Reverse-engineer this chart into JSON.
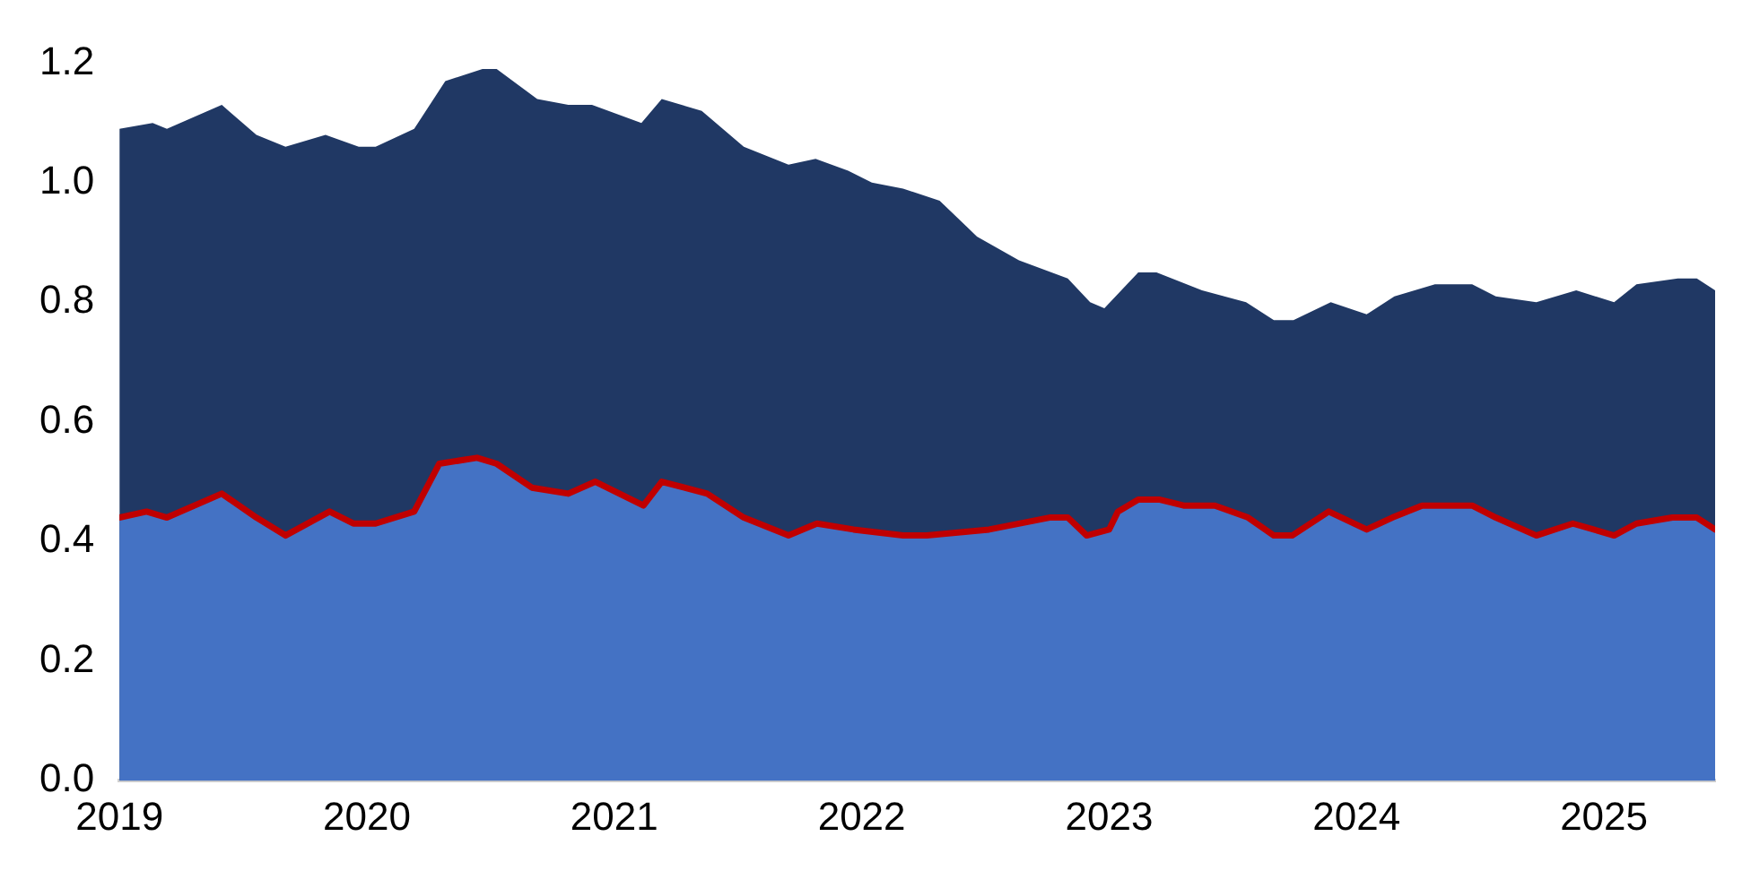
{
  "chart_data": {
    "type": "area",
    "xlim": [
      "2019-01-01",
      "2025-06-14"
    ],
    "xticks": [
      {
        "value": "2019",
        "label": "2019"
      },
      {
        "value": "2020",
        "label": "2020"
      },
      {
        "value": "2021",
        "label": "2021"
      },
      {
        "value": "2022",
        "label": "2022"
      },
      {
        "value": "2023",
        "label": "2023"
      },
      {
        "value": "2024",
        "label": "2024"
      },
      {
        "value": "2025",
        "label": "2025"
      }
    ],
    "ylim": [
      0,
      1.2
    ],
    "yticks": [
      {
        "value": 0,
        "label": "0.0"
      },
      {
        "value": 0.2,
        "label": "0.2"
      },
      {
        "value": 0.4,
        "label": "0.4"
      },
      {
        "value": 0.6,
        "label": "0.6"
      },
      {
        "value": 0.8,
        "label": "0.8"
      },
      {
        "value": 1,
        "label": "1.0"
      },
      {
        "value": 1.2,
        "label": "1.2"
      }
    ],
    "grid": false,
    "legend": false,
    "marker": "none",
    "series": [
      {
        "type": "area",
        "color": "#203864",
        "x": [
          "2019-01-01",
          "2019-02-19",
          "2019-03-12",
          "2019-06-01",
          "2019-07-22",
          "2019-09-03",
          "2019-11-01",
          "2019-12-20",
          "2020-01-14",
          "2020-03-11",
          "2020-04-26",
          "2020-06-20",
          "2020-07-11",
          "2020-09-09",
          "2020-10-25",
          "2020-11-29",
          "2021-02-10",
          "2021-03-12",
          "2021-05-10",
          "2021-07-11",
          "2021-09-15",
          "2021-10-25",
          "2021-12-12",
          "2022-01-16",
          "2022-03-03",
          "2022-04-26",
          "2022-06-20",
          "2022-08-21",
          "2022-11-01",
          "2022-12-04",
          "2022-12-25",
          "2023-02-13",
          "2023-03-12",
          "2023-05-18",
          "2023-07-22",
          "2023-09-01",
          "2023-09-30",
          "2023-11-24",
          "2024-01-16",
          "2024-02-26",
          "2024-04-26",
          "2024-06-20",
          "2024-07-25",
          "2024-09-23",
          "2024-11-21",
          "2025-01-16",
          "2025-02-18",
          "2025-04-20",
          "2025-05-18",
          "2025-06-14"
        ],
        "values": [
          1.09,
          1.1,
          1.09,
          1.13,
          1.08,
          1.06,
          1.08,
          1.06,
          1.06,
          1.09,
          1.17,
          1.19,
          1.19,
          1.14,
          1.13,
          1.13,
          1.1,
          1.14,
          1.12,
          1.06,
          1.03,
          1.04,
          1.02,
          1.0,
          0.99,
          0.97,
          0.91,
          0.87,
          0.84,
          0.8,
          0.79,
          0.85,
          0.85,
          0.82,
          0.8,
          0.77,
          0.77,
          0.8,
          0.78,
          0.81,
          0.83,
          0.83,
          0.81,
          0.8,
          0.82,
          0.8,
          0.83,
          0.84,
          0.84,
          0.82
        ]
      },
      {
        "type": "area",
        "color": "#4472c4",
        "x": [
          "2019-01-01",
          "2019-02-10",
          "2019-03-12",
          "2019-06-01",
          "2019-07-22",
          "2019-09-03",
          "2019-11-07",
          "2019-12-12",
          "2020-01-14",
          "2020-03-11",
          "2020-04-17",
          "2020-06-12",
          "2020-07-11",
          "2020-09-01",
          "2020-10-25",
          "2020-12-04",
          "2021-02-13",
          "2021-03-12",
          "2021-05-18",
          "2021-07-11",
          "2021-09-15",
          "2021-10-27",
          "2021-12-20",
          "2022-03-03",
          "2022-04-07",
          "2022-07-08",
          "2022-10-05",
          "2022-11-01",
          "2022-11-29",
          "2023-01-01",
          "2023-01-14",
          "2023-02-13",
          "2023-03-17",
          "2023-04-21",
          "2023-06-06",
          "2023-07-25",
          "2023-09-01",
          "2023-09-28",
          "2023-11-21",
          "2024-01-16",
          "2024-02-23",
          "2024-04-07",
          "2024-06-20",
          "2024-07-25",
          "2024-09-23",
          "2024-11-16",
          "2025-01-16",
          "2025-02-18",
          "2025-04-12",
          "2025-05-18",
          "2025-06-14"
        ],
        "values": [
          0.44,
          0.45,
          0.44,
          0.48,
          0.44,
          0.41,
          0.45,
          0.43,
          0.43,
          0.45,
          0.53,
          0.54,
          0.53,
          0.49,
          0.48,
          0.5,
          0.46,
          0.5,
          0.48,
          0.44,
          0.41,
          0.43,
          0.42,
          0.41,
          0.41,
          0.42,
          0.44,
          0.44,
          0.41,
          0.42,
          0.45,
          0.47,
          0.47,
          0.46,
          0.46,
          0.44,
          0.41,
          0.41,
          0.45,
          0.42,
          0.44,
          0.46,
          0.46,
          0.44,
          0.41,
          0.43,
          0.41,
          0.43,
          0.44,
          0.44,
          0.42
        ]
      },
      {
        "type": "line",
        "color": "#c00000",
        "line_style": "solid",
        "x": [
          "2019-01-01",
          "2019-02-10",
          "2019-03-12",
          "2019-06-01",
          "2019-07-22",
          "2019-09-03",
          "2019-11-07",
          "2019-12-12",
          "2020-01-14",
          "2020-03-11",
          "2020-04-17",
          "2020-06-12",
          "2020-07-11",
          "2020-09-01",
          "2020-10-25",
          "2020-12-04",
          "2021-02-13",
          "2021-03-12",
          "2021-05-18",
          "2021-07-11",
          "2021-09-15",
          "2021-10-27",
          "2021-12-20",
          "2022-03-03",
          "2022-04-07",
          "2022-07-08",
          "2022-10-05",
          "2022-11-01",
          "2022-11-29",
          "2023-01-01",
          "2023-01-14",
          "2023-02-13",
          "2023-03-17",
          "2023-04-21",
          "2023-06-06",
          "2023-07-25",
          "2023-09-01",
          "2023-09-28",
          "2023-11-21",
          "2024-01-16",
          "2024-02-23",
          "2024-04-07",
          "2024-06-20",
          "2024-07-25",
          "2024-09-23",
          "2024-11-16",
          "2025-01-16",
          "2025-02-18",
          "2025-04-12",
          "2025-05-18",
          "2025-06-14"
        ],
        "values": [
          0.44,
          0.45,
          0.44,
          0.48,
          0.44,
          0.41,
          0.45,
          0.43,
          0.43,
          0.45,
          0.53,
          0.54,
          0.53,
          0.49,
          0.48,
          0.5,
          0.46,
          0.5,
          0.48,
          0.44,
          0.41,
          0.43,
          0.42,
          0.41,
          0.41,
          0.42,
          0.44,
          0.44,
          0.41,
          0.42,
          0.45,
          0.47,
          0.47,
          0.46,
          0.46,
          0.44,
          0.41,
          0.41,
          0.45,
          0.42,
          0.44,
          0.46,
          0.46,
          0.44,
          0.41,
          0.43,
          0.41,
          0.43,
          0.44,
          0.44,
          0.42
        ]
      }
    ]
  }
}
